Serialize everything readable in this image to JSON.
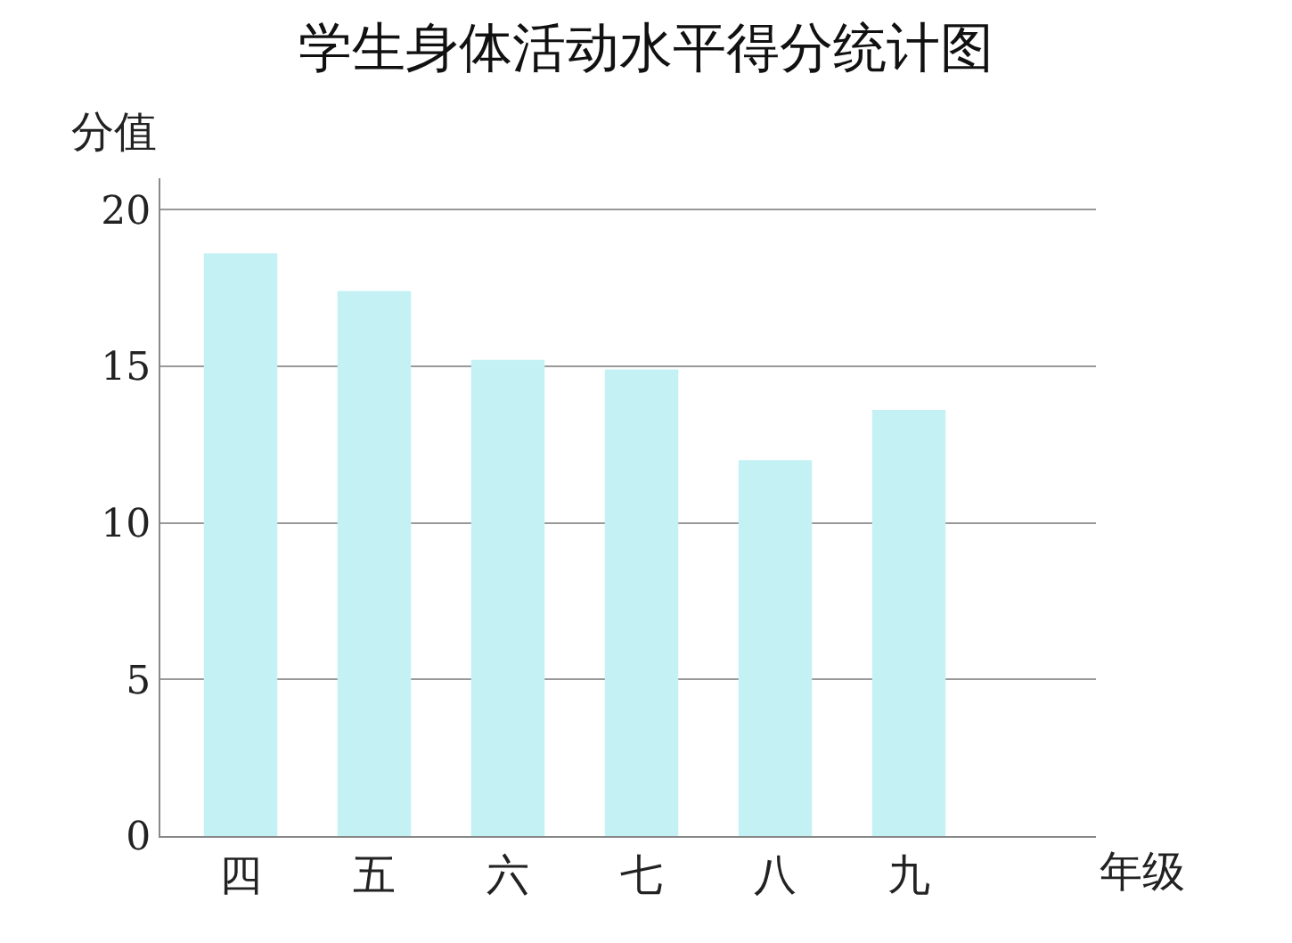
{
  "chart_data": {
    "type": "bar",
    "title": "学生身体活动水平得分统计图",
    "xlabel": "年级",
    "ylabel": "分值",
    "categories": [
      "四",
      "五",
      "六",
      "七",
      "八",
      "九"
    ],
    "values": [
      18.6,
      17.4,
      15.2,
      14.9,
      12.0,
      13.6
    ],
    "color": "#c4f2f4",
    "ylim": [
      0,
      21
    ],
    "yticks": [
      0,
      5,
      10,
      15,
      20
    ],
    "grid": "y"
  }
}
